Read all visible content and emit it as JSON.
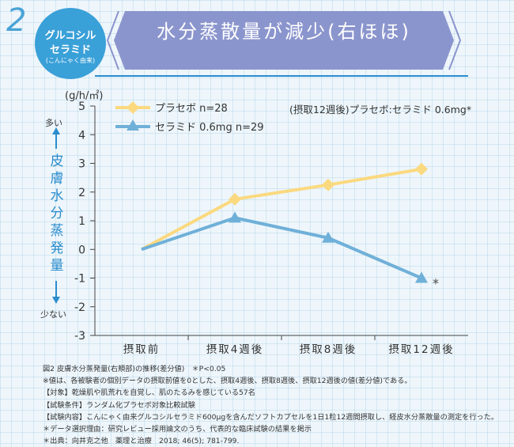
{
  "header": {
    "number": "2",
    "badge_line1": "グルコシル",
    "badge_line2": "セラミド",
    "badge_line3": "(こんにゃく由来)",
    "title": "水分蒸散量が減少(右ほほ)"
  },
  "side_label": {
    "more": "多い",
    "less": "少ない",
    "vertical": "皮膚水分蒸発量"
  },
  "note_top_right": "(摂取12週後)プラセボ:セラミド 0.6mg*",
  "colors": {
    "placebo": "#fbd97f",
    "ceramide": "#6fb0d8",
    "title_bg": "#8b95cd",
    "badge": "#3aa0d8",
    "accent_blue": "#2a8ccd"
  },
  "chart_data": {
    "type": "line",
    "categories": [
      "摂取前",
      "摂取4週後",
      "摂取8週後",
      "摂取12週後"
    ],
    "ylabel": "(g/h/㎡)",
    "ylim": [
      -3,
      5
    ],
    "yticks": [
      5,
      4,
      3,
      2,
      1,
      0,
      -1,
      -2,
      -3
    ],
    "grid": false,
    "legend_position": "top-left",
    "series": [
      {
        "name": "プラセボ n=28",
        "marker": "diamond",
        "color": "#fbd97f",
        "values": [
          0,
          1.75,
          2.25,
          2.8
        ]
      },
      {
        "name": "セラミド 0.6mg n=29",
        "marker": "triangle",
        "color": "#6fb0d8",
        "values": [
          0,
          1.1,
          0.4,
          -1.0
        ]
      }
    ],
    "annotations": [
      {
        "text": "*",
        "category": "摂取12週後",
        "series": "セラミド 0.6mg n=29"
      }
    ]
  },
  "caption": [
    "図2 皮膚水分蒸発量(右頬部)の推移(差分値)　＊P<0.05",
    "※値は、各被験者の個別データの摂取前値を0とした、摂取4週後、摂取8週後、摂取12週後の値(差分値)である。",
    "【対象】乾燥肌や肌荒れを自覚し、肌のたるみを感じている57名",
    "【試験条件】ランダム化プラセボ対象比較試験",
    "【試験内容】こんにゃく由来グルコシルセラミド600μgを含んだソフトカプセルを1日1粒12週間摂取し、経皮水分蒸散量の測定を行った。",
    "＊データ選択理由：研究レビュー採用論文のうち、代表的な臨床試験の結果を掲示",
    "＊出典：向井克之他　薬理と治療　2018; 46(5); 781-799."
  ]
}
